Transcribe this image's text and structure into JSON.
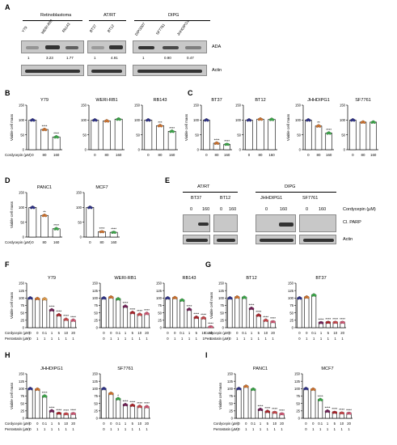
{
  "panels": {
    "A": {
      "label": "A",
      "groups": [
        "Retinoblastoma",
        "AT/RT",
        "DIPG"
      ],
      "lanes": [
        "Y79",
        "WERI-Rb1",
        "Rb143",
        "BT37",
        "BT12",
        "DIPG007",
        "SF7761",
        "JHHDIPG1"
      ],
      "rows": [
        "ADA",
        "Actin"
      ],
      "quant": [
        "1",
        "3.23",
        "1.77",
        "1",
        "4.91",
        "1",
        "0.90",
        "0.47"
      ]
    },
    "E": {
      "label": "E",
      "groups": [
        "AT/RT",
        "DIPG"
      ],
      "lanes": [
        "BT37",
        "BT12",
        "JHHDIPG1",
        "SF7761"
      ],
      "doses": [
        "0",
        "160",
        "0",
        "160",
        "0",
        "160",
        "0",
        "160"
      ],
      "dose_header": "Cordycepin (µM)",
      "rows": [
        "Cl. PARP",
        "Actin"
      ]
    }
  },
  "text": {
    "viable": "Viable cell mass",
    "cordy": "Cordycepin (µM)",
    "pento": "Pentostatin (µM)"
  },
  "chart_data": [
    {
      "panel": "B",
      "type": "bar",
      "title": "Y79",
      "categories": [
        "0",
        "80",
        "160"
      ],
      "values": [
        100,
        68,
        43
      ],
      "sig": [
        "",
        "****",
        "****"
      ],
      "ylim": [
        0,
        150
      ],
      "yticks": [
        0,
        50,
        100,
        150
      ],
      "ylabel": "Viable cell mass",
      "xlabel": "Cordycepin (µM)",
      "colors": [
        "#2b2f8f",
        "#e07a2e",
        "#3bb34a"
      ]
    },
    {
      "panel": "B",
      "type": "bar",
      "title": "WERI-RB1",
      "categories": [
        "0",
        "80",
        "160"
      ],
      "values": [
        100,
        97,
        103
      ],
      "sig": [
        "",
        "",
        ""
      ],
      "ylim": [
        0,
        150
      ],
      "yticks": [
        0,
        50,
        100,
        150
      ],
      "colors": [
        "#2b2f8f",
        "#e07a2e",
        "#3bb34a"
      ]
    },
    {
      "panel": "B",
      "type": "bar",
      "title": "RB143",
      "categories": [
        "0",
        "80",
        "160"
      ],
      "values": [
        100,
        81,
        62
      ],
      "sig": [
        "",
        "***",
        "****"
      ],
      "ylim": [
        0,
        150
      ],
      "yticks": [
        0,
        50,
        100,
        150
      ],
      "colors": [
        "#2b2f8f",
        "#e07a2e",
        "#3bb34a"
      ]
    },
    {
      "panel": "C",
      "type": "bar",
      "title": "BT37",
      "categories": [
        "0",
        "80",
        "160"
      ],
      "values": [
        100,
        22,
        18
      ],
      "sig": [
        "",
        "****",
        "****"
      ],
      "ylim": [
        0,
        150
      ],
      "yticks": [
        0,
        50,
        100,
        150
      ],
      "ylabel": "Viable cell mass",
      "colors": [
        "#2b2f8f",
        "#e07a2e",
        "#3bb34a"
      ]
    },
    {
      "panel": "C",
      "type": "bar",
      "title": "BT12",
      "categories": [
        "0",
        "80",
        "160"
      ],
      "values": [
        100,
        103,
        102
      ],
      "sig": [
        "",
        "",
        ""
      ],
      "ylim": [
        0,
        150
      ],
      "yticks": [
        0,
        50,
        100,
        150
      ],
      "colors": [
        "#2b2f8f",
        "#e07a2e",
        "#3bb34a"
      ]
    },
    {
      "panel": "C",
      "type": "bar",
      "title": "JHHDIPG1",
      "categories": [
        "0",
        "80",
        "160"
      ],
      "values": [
        100,
        80,
        56
      ],
      "sig": [
        "",
        "**",
        "****"
      ],
      "ylim": [
        0,
        150
      ],
      "yticks": [
        0,
        50,
        100,
        150
      ],
      "ylabel": "Viable cell mass",
      "colors": [
        "#2b2f8f",
        "#e07a2e",
        "#3bb34a"
      ]
    },
    {
      "panel": "C",
      "type": "bar",
      "title": "SF7761",
      "categories": [
        "0",
        "80",
        "160"
      ],
      "values": [
        100,
        93,
        93
      ],
      "sig": [
        "",
        "",
        ""
      ],
      "ylim": [
        0,
        150
      ],
      "yticks": [
        0,
        50,
        100,
        150
      ],
      "colors": [
        "#2b2f8f",
        "#e07a2e",
        "#3bb34a"
      ]
    },
    {
      "panel": "D",
      "type": "bar",
      "title": "PANC1",
      "categories": [
        "0",
        "80",
        "160"
      ],
      "values": [
        100,
        73,
        28
      ],
      "sig": [
        "",
        "**",
        "****"
      ],
      "ylim": [
        0,
        150
      ],
      "yticks": [
        0,
        50,
        100,
        150
      ],
      "ylabel": "Viable cell mass",
      "xlabel": "Cordycepin (µM)",
      "colors": [
        "#2b2f8f",
        "#e07a2e",
        "#3bb34a"
      ]
    },
    {
      "panel": "D",
      "type": "bar",
      "title": "MCF7",
      "categories": [
        "0",
        "80",
        "160"
      ],
      "values": [
        100,
        18,
        16
      ],
      "sig": [
        "",
        "****",
        "****"
      ],
      "ylim": [
        0,
        150
      ],
      "yticks": [
        0,
        50,
        100,
        150
      ],
      "colors": [
        "#2b2f8f",
        "#e07a2e",
        "#3bb34a"
      ]
    },
    {
      "panel": "F",
      "type": "bar",
      "title": "Y79",
      "cordycepin": [
        "0",
        "0",
        "0.1",
        "1",
        "5",
        "10",
        "20"
      ],
      "pentostatin": [
        "0",
        "1",
        "1",
        "1",
        "1",
        "1",
        "1"
      ],
      "values": [
        100,
        98,
        97,
        60,
        43,
        28,
        25
      ],
      "sig": [
        "",
        "",
        "",
        "****",
        "****",
        "****",
        "****"
      ],
      "ylim": [
        0,
        150
      ],
      "yticks": [
        0,
        25,
        50,
        75,
        100,
        125,
        150
      ],
      "ylabel": "Viable cell mass",
      "colors": [
        "#2b2f8f",
        "#e07a2e",
        "#f2a44a",
        "#7a1f5c",
        "#b9242b",
        "#d94a4f",
        "#e05a7a"
      ]
    },
    {
      "panel": "F",
      "type": "bar",
      "title": "WERI-RB1",
      "cordycepin": [
        "0",
        "0",
        "0.1",
        "1",
        "5",
        "10",
        "20"
      ],
      "pentostatin": [
        "0",
        "1",
        "1",
        "1",
        "1",
        "1",
        "1"
      ],
      "values": [
        100,
        103,
        97,
        72,
        51,
        45,
        48
      ],
      "sig": [
        "",
        "",
        "",
        "****",
        "****",
        "****",
        "****"
      ],
      "ylim": [
        0,
        150
      ],
      "yticks": [
        0,
        25,
        50,
        75,
        100,
        125,
        150
      ],
      "colors": [
        "#2b2f8f",
        "#e07a2e",
        "#3bb34a",
        "#7a1f5c",
        "#b9242b",
        "#d94a4f",
        "#e05a7a"
      ]
    },
    {
      "panel": "F",
      "type": "bar",
      "title": "RB143",
      "cordycepin": [
        "0",
        "0",
        "0.1",
        "1",
        "5",
        "10",
        "20"
      ],
      "pentostatin": [
        "0",
        "1",
        "1",
        "1",
        "1",
        "1",
        "1"
      ],
      "values": [
        100,
        101,
        93,
        62,
        35,
        33,
        3
      ],
      "sig": [
        "",
        "",
        "",
        "****",
        "****",
        "****",
        "****"
      ],
      "ylim": [
        0,
        150
      ],
      "yticks": [
        0,
        25,
        50,
        75,
        100,
        125,
        150
      ],
      "colors": [
        "#2b2f8f",
        "#e07a2e",
        "#3bb34a",
        "#7a1f5c",
        "#b9242b",
        "#d94a4f",
        "#e05a7a"
      ]
    },
    {
      "panel": "G",
      "type": "bar",
      "title": "BT12",
      "cordycepin": [
        "0",
        "0",
        "0.1",
        "1",
        "5",
        "10",
        "20"
      ],
      "pentostatin": [
        "0",
        "1",
        "1",
        "1",
        "1",
        "1",
        "1"
      ],
      "values": [
        100,
        103,
        102,
        65,
        42,
        25,
        20
      ],
      "sig": [
        "",
        "",
        "",
        "****",
        "****",
        "****",
        "****"
      ],
      "ylim": [
        0,
        150
      ],
      "yticks": [
        0,
        25,
        50,
        75,
        100,
        125,
        150
      ],
      "ylabel": "Viable cell mass",
      "colors": [
        "#2b2f8f",
        "#e07a2e",
        "#3bb34a",
        "#7a1f5c",
        "#b9242b",
        "#d94a4f",
        "#e05a7a"
      ]
    },
    {
      "panel": "G",
      "type": "bar",
      "title": "BT37",
      "cordycepin": [
        "0",
        "0",
        "0.1",
        "1",
        "5",
        "10",
        "20"
      ],
      "pentostatin": [
        "0",
        "1",
        "1",
        "1",
        "1",
        "1",
        "1"
      ],
      "values": [
        100,
        103,
        110,
        17,
        18,
        18,
        18
      ],
      "sig": [
        "",
        "",
        "",
        "****",
        "****",
        "****",
        "****"
      ],
      "ylim": [
        0,
        150
      ],
      "yticks": [
        0,
        25,
        50,
        75,
        100,
        125,
        150
      ],
      "colors": [
        "#2b2f8f",
        "#e07a2e",
        "#3bb34a",
        "#7a1f5c",
        "#b9242b",
        "#d94a4f",
        "#e05a7a"
      ]
    },
    {
      "panel": "H",
      "type": "bar",
      "title": "JHHDIPG1",
      "cordycepin": [
        "0",
        "0",
        "0.1",
        "1",
        "5",
        "10",
        "20"
      ],
      "pentostatin": [
        "0",
        "1",
        "1",
        "1",
        "1",
        "1",
        "1"
      ],
      "values": [
        100,
        98,
        75,
        25,
        17,
        15,
        16
      ],
      "sig": [
        "",
        "",
        "****",
        "****",
        "****",
        "****",
        "****"
      ],
      "ylim": [
        0,
        150
      ],
      "yticks": [
        0,
        25,
        50,
        75,
        100,
        125,
        150
      ],
      "ylabel": "Viable cell mass",
      "colors": [
        "#2b2f8f",
        "#e07a2e",
        "#3bb34a",
        "#7a1f5c",
        "#b9242b",
        "#d94a4f",
        "#e05a7a"
      ]
    },
    {
      "panel": "H",
      "type": "bar",
      "title": "SF7761",
      "cordycepin": [
        "0",
        "0",
        "0.1",
        "1",
        "5",
        "10",
        "20"
      ],
      "pentostatin": [
        "0",
        "1",
        "1",
        "1",
        "1",
        "1",
        "1"
      ],
      "values": [
        100,
        84,
        66,
        46,
        44,
        40,
        39
      ],
      "sig": [
        "",
        "",
        "*",
        "****",
        "****",
        "****",
        "****"
      ],
      "ylim": [
        0,
        150
      ],
      "yticks": [
        0,
        25,
        50,
        75,
        100,
        125,
        150
      ],
      "colors": [
        "#2b2f8f",
        "#e07a2e",
        "#3bb34a",
        "#7a1f5c",
        "#b9242b",
        "#d94a4f",
        "#e05a7a"
      ]
    },
    {
      "panel": "I",
      "type": "bar",
      "title": "PANC1",
      "cordycepin": [
        "0",
        "0",
        "0.1",
        "1",
        "5",
        "10",
        "20"
      ],
      "pentostatin": [
        "0",
        "1",
        "1",
        "1",
        "1",
        "1",
        "1"
      ],
      "values": [
        100,
        108,
        98,
        30,
        23,
        20,
        15
      ],
      "sig": [
        "",
        "",
        "",
        "****",
        "****",
        "****",
        "****"
      ],
      "ylim": [
        0,
        150
      ],
      "yticks": [
        0,
        25,
        50,
        75,
        100,
        125,
        150
      ],
      "ylabel": "Viable cell mass",
      "colors": [
        "#2b2f8f",
        "#e07a2e",
        "#3bb34a",
        "#7a1f5c",
        "#b9242b",
        "#d94a4f",
        "#e05a7a"
      ]
    },
    {
      "panel": "I",
      "type": "bar",
      "title": "MCF7",
      "cordycepin": [
        "0",
        "0",
        "0.1",
        "1",
        "5",
        "10",
        "20"
      ],
      "pentostatin": [
        "0",
        "1",
        "1",
        "1",
        "1",
        "1",
        "1"
      ],
      "values": [
        100,
        98,
        63,
        24,
        20,
        18,
        17
      ],
      "sig": [
        "",
        "",
        "****",
        "****",
        "****",
        "****",
        "****"
      ],
      "ylim": [
        0,
        150
      ],
      "yticks": [
        0,
        25,
        50,
        75,
        100,
        125,
        150
      ],
      "colors": [
        "#2b2f8f",
        "#e07a2e",
        "#3bb34a",
        "#7a1f5c",
        "#b9242b",
        "#d94a4f",
        "#e05a7a"
      ]
    }
  ]
}
